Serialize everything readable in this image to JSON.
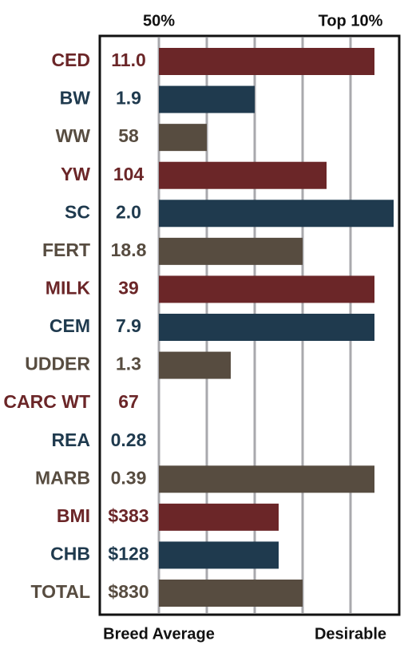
{
  "chart_data": {
    "type": "bar",
    "categories": [
      "CED",
      "BW",
      "WW",
      "YW",
      "SC",
      "FERT",
      "MILK",
      "CEM",
      "UDDER",
      "CARC WT",
      "REA",
      "MARB",
      "BMI",
      "CHB",
      "TOTAL"
    ],
    "epd_labels": [
      "11.0",
      "1.9",
      "58",
      "104",
      "2.0",
      "18.8",
      "39",
      "7.9",
      "1.3",
      "67",
      "0.28",
      "0.39",
      "$383",
      "$128",
      "$830"
    ],
    "values": [
      5,
      30,
      40,
      15,
      1,
      20,
      5,
      5,
      35,
      null,
      null,
      5,
      25,
      25,
      20
    ],
    "colors": [
      "#6b2628",
      "#1f3a4e",
      "#574c40",
      "#6b2628",
      "#1f3a4e",
      "#574c40",
      "#6b2628",
      "#1f3a4e",
      "#574c40",
      "#6b2628",
      "#1f3a4e",
      "#574c40",
      "#6b2628",
      "#1f3a4e",
      "#574c40"
    ],
    "xlim": [
      50,
      0
    ],
    "xticks": [
      {
        "value": 50,
        "label": "50%"
      },
      {
        "value": 10,
        "label": "Top 10%"
      }
    ],
    "xticks_bottom": [
      {
        "value": 50,
        "label": "Breed Average"
      },
      {
        "value": 10,
        "label": "Desirable"
      }
    ],
    "xgrid": [
      50,
      40,
      30,
      20,
      10
    ]
  }
}
